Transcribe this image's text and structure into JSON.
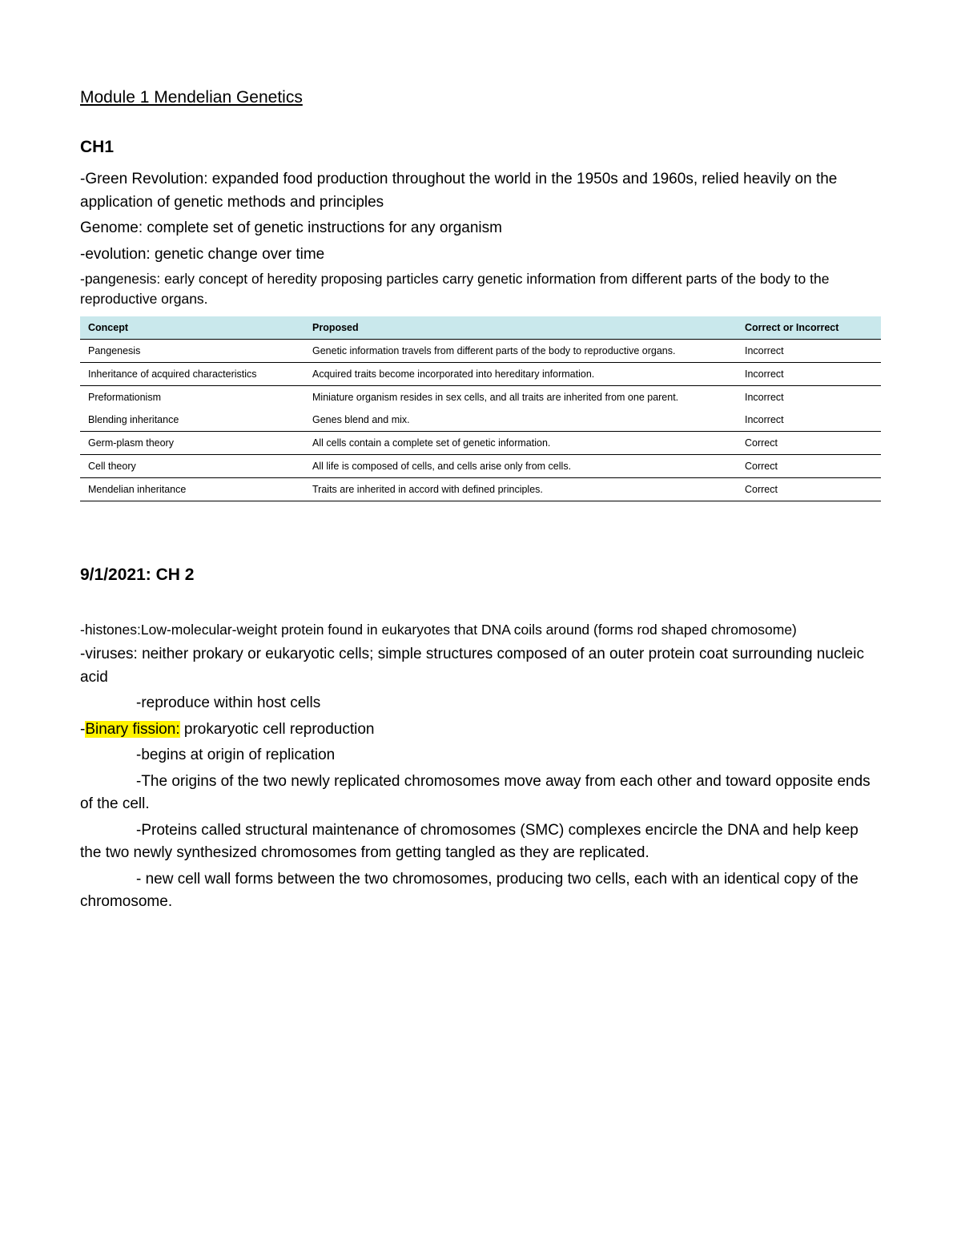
{
  "title": "Module 1 Mendelian Genetics",
  "ch1": {
    "heading": "CH1",
    "lines": [
      "-Green Revolution: expanded food production throughout the world in the 1950s and 1960s, relied heavily on the application of genetic methods and principles",
      "Genome: complete set of genetic instructions for any organism",
      "-evolution: genetic change over time"
    ],
    "small": "-pangenesis: early concept of heredity proposing particles carry genetic information from different parts of the body to the reproductive organs."
  },
  "table": {
    "header_bg": "#c9e8ec",
    "columns": [
      "Concept",
      "Proposed",
      "Correct or Incorrect"
    ],
    "rows": [
      {
        "c1": "Pangenesis",
        "c2": "Genetic information travels from different parts of the body to reproductive organs.",
        "c3": "Incorrect",
        "border": true
      },
      {
        "c1": "Inheritance of acquired characteristics",
        "c2": "Acquired traits become incorporated into hereditary information.",
        "c3": "Incorrect",
        "border": true
      },
      {
        "c1": "Preformationism",
        "c2": "Miniature organism resides in sex cells, and all traits are inherited from one parent.",
        "c3": "Incorrect",
        "border": false
      },
      {
        "c1": "Blending inheritance",
        "c2": "Genes blend and mix.",
        "c3": "Incorrect",
        "border": true
      },
      {
        "c1": "Germ-plasm theory",
        "c2": "All cells contain a complete set of genetic information.",
        "c3": "Correct",
        "border": true
      },
      {
        "c1": "Cell theory",
        "c2": "All life is composed of cells, and cells arise only from cells.",
        "c3": "Correct",
        "border": true
      },
      {
        "c1": "Mendelian inheritance",
        "c2": "Traits are inherited in accord with defined principles.",
        "c3": "Correct",
        "border": true
      }
    ]
  },
  "ch2": {
    "heading": "9/1/2021: CH 2",
    "p1": "-histones:Low-molecular-weight protein found in eukaryotes that DNA coils around (forms rod shaped chromosome)",
    "p2": "-viruses: neither prokary or eukaryotic cells; simple structures composed of an outer protein coat surrounding nucleic acid",
    "p3": "-reproduce within host cells",
    "bf_prefix": "-",
    "bf_hl": "Binary fission:",
    "bf_suffix": " prokaryotic cell reproduction",
    "p5": "-begins at origin of replication",
    "p6": "-The origins of the two newly replicated chromosomes move away from each other and toward opposite ends of the cell.",
    "p7": "-Proteins called structural maintenance of chromosomes (SMC) complexes encircle the DNA and help keep the two newly synthesized chromosomes from getting tangled as they are replicated.",
    "p8": "- new cell wall forms between the two chromosomes, producing two cells, each with an identical copy of the chromosome."
  }
}
